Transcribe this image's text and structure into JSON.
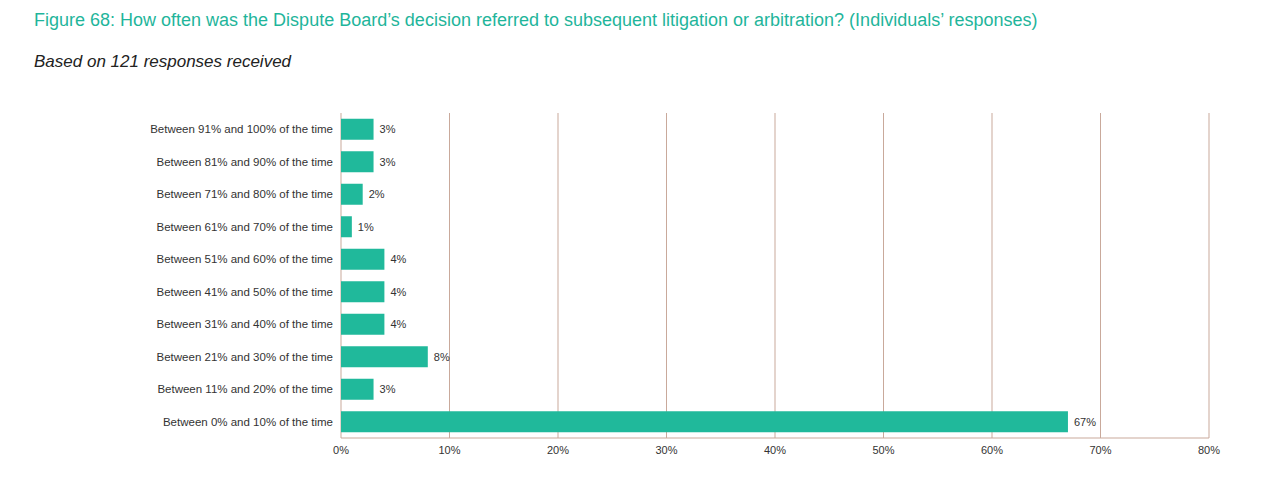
{
  "chart_data": {
    "type": "bar",
    "title": "Figure 68: How often was the Dispute Board’s decision referred to subsequent litigation or arbitration? (Individuals’ responses)",
    "subtitle": "Based on 121 responses received",
    "orientation": "horizontal",
    "categories": [
      "Between 91% and 100% of the time",
      "Between 81% and 90% of the time",
      "Between 71% and 80% of the time",
      "Between 61% and 70% of the time",
      "Between 51% and 60% of the time",
      "Between 41% and 50% of the time",
      "Between 31% and 40% of the time",
      "Between 21% and 30% of the time",
      "Between 11% and 20% of the time",
      "Between 0% and 10% of the time"
    ],
    "values": [
      3,
      3,
      2,
      1,
      4,
      4,
      4,
      8,
      3,
      67
    ],
    "value_labels": [
      "3%",
      "3%",
      "2%",
      "1%",
      "4%",
      "4%",
      "4%",
      "8%",
      "3%",
      "67%"
    ],
    "color": "#20b99b",
    "xlim": [
      0,
      80
    ],
    "xticks": [
      {
        "value": 0,
        "label": "0%"
      },
      {
        "value": 10,
        "label": "10%"
      },
      {
        "value": 20,
        "label": "20%"
      },
      {
        "value": 30,
        "label": "30%"
      },
      {
        "value": 40,
        "label": "40%"
      },
      {
        "value": 50,
        "label": "50%"
      },
      {
        "value": 60,
        "label": "60%"
      },
      {
        "value": 70,
        "label": "70%"
      },
      {
        "value": 80,
        "label": "80%"
      }
    ],
    "grid": true,
    "data_labels": true
  }
}
